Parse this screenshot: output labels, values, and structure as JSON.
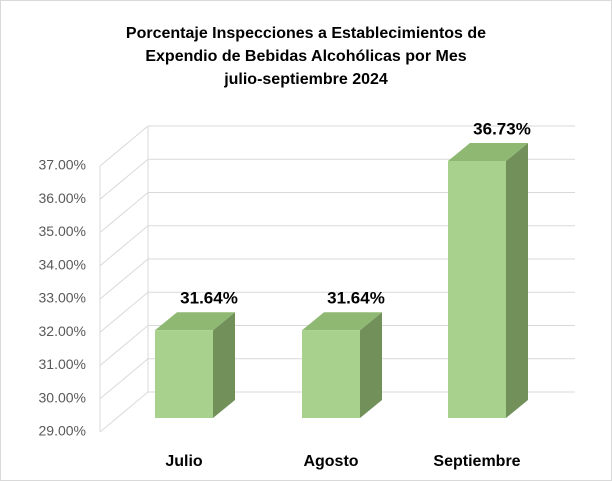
{
  "chart_data": {
    "type": "bar3d",
    "title": [
      "Porcentaje Inspecciones a Establecimientos de",
      "Expendio de Bebidas Alcohólicas por Mes",
      "julio-septiembre 2024"
    ],
    "categories": [
      "Julio",
      "Agosto",
      "Septiembre"
    ],
    "values": [
      31.64,
      31.64,
      36.73
    ],
    "value_labels": [
      "31.64%",
      "31.64%",
      "36.73%"
    ],
    "color": "#a9d18e",
    "ylim": [
      29,
      37
    ],
    "yticks": [
      {
        "value": 29,
        "label": "29.00%"
      },
      {
        "value": 30,
        "label": "30.00%"
      },
      {
        "value": 31,
        "label": "31.00%"
      },
      {
        "value": 32,
        "label": "32.00%"
      },
      {
        "value": 33,
        "label": "33.00%"
      },
      {
        "value": 34,
        "label": "34.00%"
      },
      {
        "value": 35,
        "label": "35.00%"
      },
      {
        "value": 36,
        "label": "36.00%"
      },
      {
        "value": 37,
        "label": "37.00%"
      }
    ],
    "grid": true
  }
}
